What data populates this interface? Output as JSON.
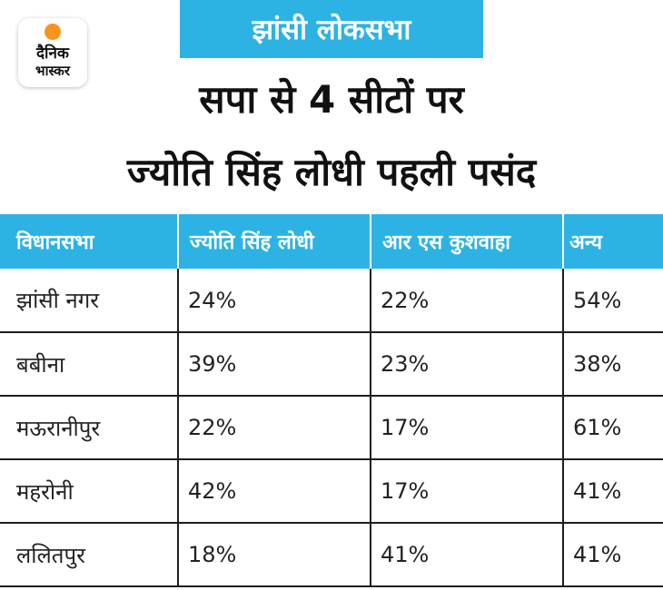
{
  "brand": {
    "logo_line1": "दैनिक",
    "logo_line2": "भास्कर",
    "sun_color": "#f7941d"
  },
  "tag": "झांसी लोकसभा",
  "headline": {
    "line1": "सपा से 4 सीटों पर",
    "line2": "ज्योति सिंह लोधी पहली पसंद"
  },
  "accent_color": "#2cb3e4",
  "table": {
    "headers": [
      "विधानसभा",
      "ज्योति सिंह लोधी",
      "आर एस कुशवाहा",
      "अन्य"
    ],
    "rows": [
      {
        "constituency": "झांसी नगर",
        "jyoti": "24%",
        "kushwaha": "22%",
        "other": "54%"
      },
      {
        "constituency": "बबीना",
        "jyoti": "39%",
        "kushwaha": "23%",
        "other": "38%"
      },
      {
        "constituency": "मऊरानीपुर",
        "jyoti": "22%",
        "kushwaha": "17%",
        "other": "61%"
      },
      {
        "constituency": "महरोनी",
        "jyoti": "42%",
        "kushwaha": "17%",
        "other": "41%"
      },
      {
        "constituency": "ललितपुर",
        "jyoti": "18%",
        "kushwaha": "41%",
        "other": "41%"
      }
    ]
  }
}
